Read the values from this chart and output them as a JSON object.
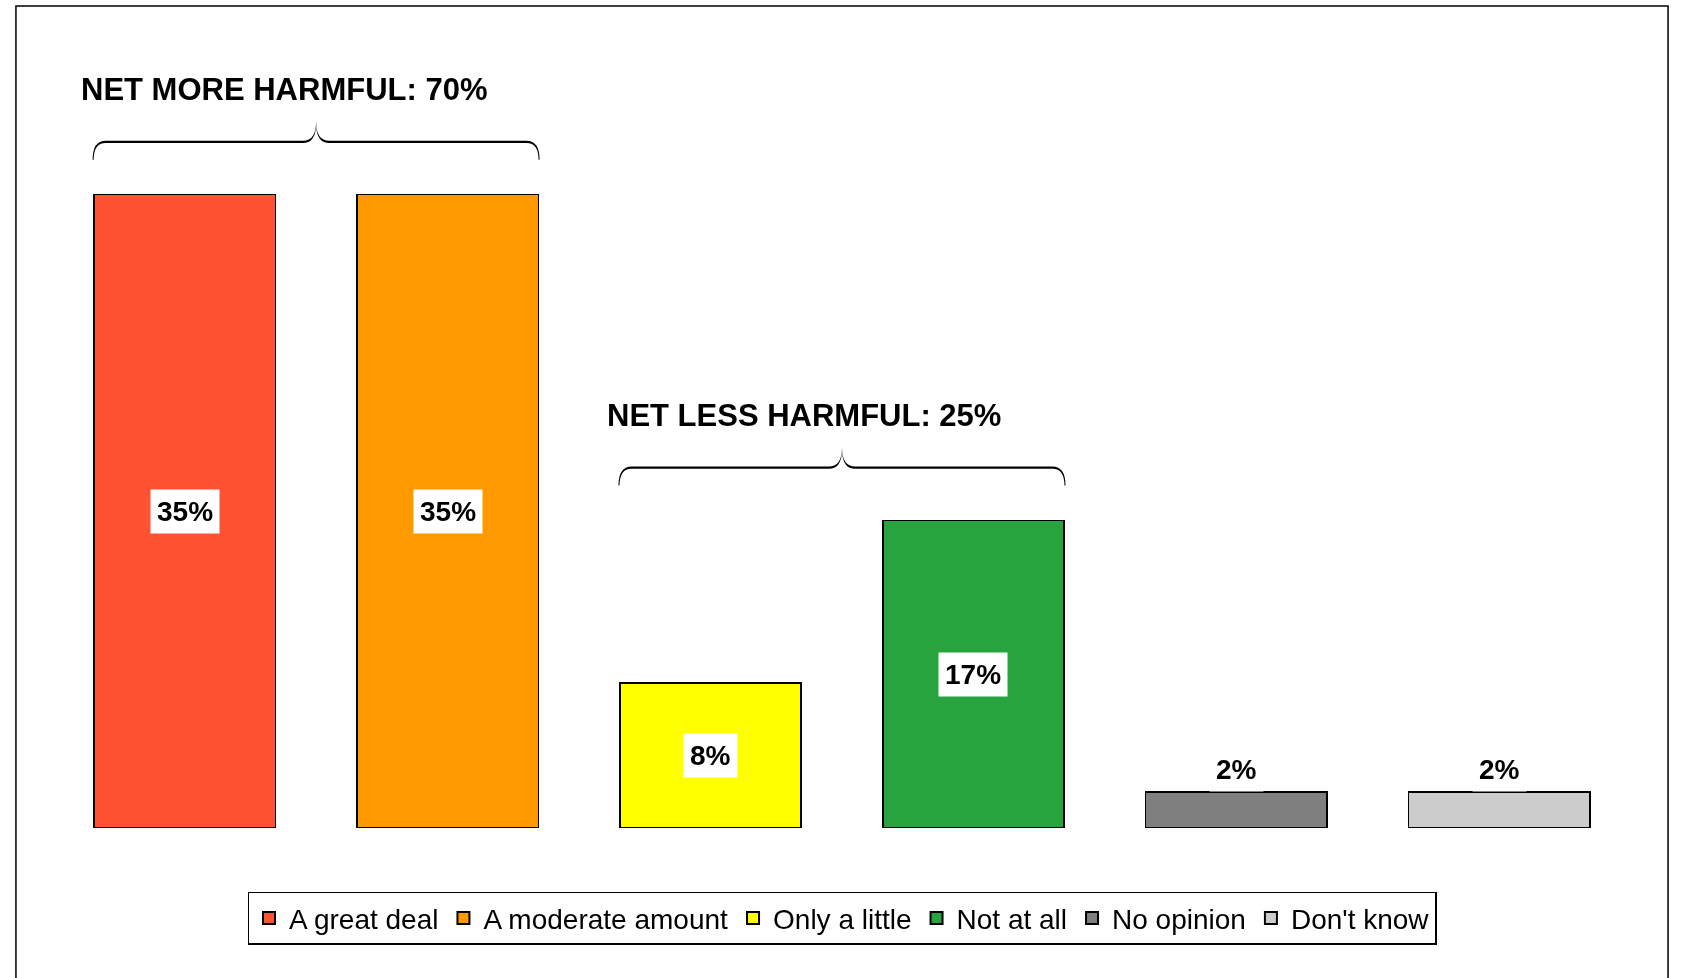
{
  "chart_data": {
    "type": "bar",
    "stacked": true,
    "categories": [
      null,
      null,
      null,
      null,
      null,
      null
    ],
    "series": [
      {
        "name": "A great deal",
        "color": "#ff5233",
        "values": [
          35,
          null,
          null,
          null,
          null,
          null
        ],
        "value_labels": [
          "35%",
          null,
          null,
          null,
          null,
          null
        ]
      },
      {
        "name": "A moderate amount",
        "color": "#ff9900",
        "values": [
          null,
          35,
          null,
          null,
          null,
          null
        ],
        "value_labels": [
          null,
          "35%",
          null,
          null,
          null,
          null
        ]
      },
      {
        "name": "Only a little",
        "color": "#ffff00",
        "values": [
          null,
          null,
          8,
          null,
          null,
          null
        ],
        "value_labels": [
          null,
          null,
          "8%",
          null,
          null,
          null
        ]
      },
      {
        "name": "Not at all",
        "color": "#28a43f",
        "values": [
          null,
          null,
          null,
          17,
          null,
          null
        ],
        "value_labels": [
          null,
          null,
          null,
          "17%",
          null,
          null
        ]
      },
      {
        "name": "No opinion",
        "color": "#7f7f7f",
        "values": [
          null,
          null,
          null,
          null,
          2,
          null
        ],
        "value_labels": [
          null,
          null,
          null,
          null,
          "2%",
          null
        ]
      },
      {
        "name": "Don't know",
        "color": "#cccccc",
        "values": [
          null,
          null,
          null,
          null,
          null,
          2
        ],
        "value_labels": [
          null,
          null,
          null,
          null,
          null,
          "2%"
        ]
      }
    ],
    "annotations": [
      "NET MORE HARMFUL: 70%",
      "NET LESS HARMFUL: 25%"
    ],
    "legend": "bottom"
  }
}
